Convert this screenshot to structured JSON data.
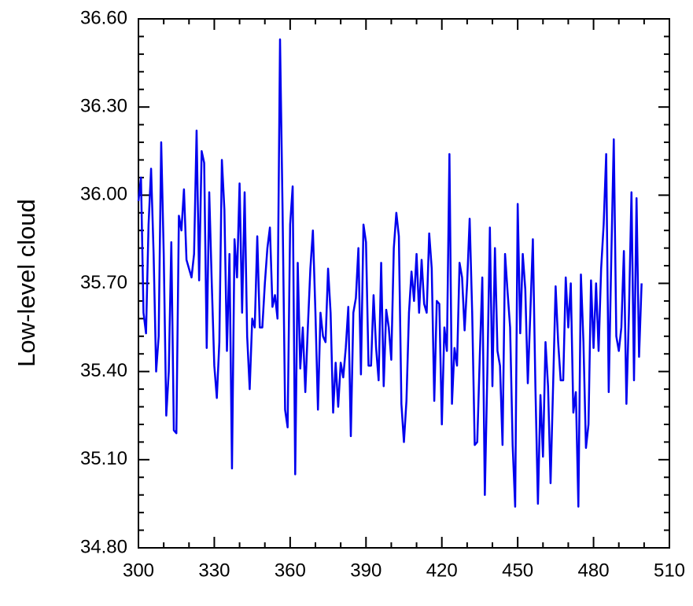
{
  "chart_data": {
    "type": "line",
    "ylabel": "Low-level cloud",
    "x": [
      300,
      301,
      302,
      303,
      304,
      305,
      306,
      307,
      308,
      309,
      310,
      311,
      312,
      313,
      314,
      315,
      316,
      317,
      318,
      319,
      320,
      321,
      322,
      323,
      324,
      325,
      326,
      327,
      328,
      329,
      330,
      331,
      332,
      333,
      334,
      335,
      336,
      337,
      338,
      339,
      340,
      341,
      342,
      343,
      344,
      345,
      346,
      347,
      348,
      349,
      350,
      351,
      352,
      353,
      354,
      355,
      356,
      357,
      358,
      359,
      360,
      361,
      362,
      363,
      364,
      365,
      366,
      367,
      368,
      369,
      370,
      371,
      372,
      373,
      374,
      375,
      376,
      377,
      378,
      379,
      380,
      381,
      382,
      383,
      384,
      385,
      386,
      387,
      388,
      389,
      390,
      391,
      392,
      393,
      394,
      395,
      396,
      397,
      398,
      399,
      400,
      401,
      402,
      403,
      404,
      405,
      406,
      407,
      408,
      409,
      410,
      411,
      412,
      413,
      414,
      415,
      416,
      417,
      418,
      419,
      420,
      421,
      422,
      423,
      424,
      425,
      426,
      427,
      428,
      429,
      430,
      431,
      432,
      433,
      434,
      435,
      436,
      437,
      438,
      439,
      440,
      441,
      442,
      443,
      444,
      445,
      446,
      447,
      448,
      449,
      450,
      451,
      452,
      453,
      454,
      455,
      456,
      457,
      458,
      459,
      460,
      461,
      462,
      463,
      464,
      465,
      466,
      467,
      468,
      469,
      470,
      471,
      472,
      473,
      474,
      475,
      476,
      477,
      478,
      479,
      480,
      481,
      482,
      483,
      484,
      485,
      486,
      487,
      488,
      489,
      490,
      491,
      492,
      493,
      494,
      495,
      496,
      497,
      498,
      499
    ],
    "series": [
      {
        "color": "#0000ee",
        "values": [
          35.98,
          36.06,
          35.6,
          35.53,
          35.9,
          36.09,
          35.8,
          35.4,
          35.52,
          36.18,
          35.8,
          35.25,
          35.4,
          35.84,
          35.2,
          35.19,
          35.93,
          35.88,
          36.02,
          35.78,
          35.75,
          35.72,
          35.8,
          36.22,
          35.71,
          36.15,
          36.11,
          35.48,
          36.01,
          35.7,
          35.42,
          35.31,
          35.5,
          36.12,
          35.95,
          35.47,
          35.8,
          35.07,
          35.85,
          35.72,
          36.04,
          35.6,
          36.01,
          35.52,
          35.34,
          35.58,
          35.55,
          35.86,
          35.55,
          35.55,
          35.7,
          35.82,
          35.89,
          35.62,
          35.66,
          35.58,
          36.53,
          35.95,
          35.27,
          35.21,
          35.9,
          36.03,
          35.05,
          35.77,
          35.41,
          35.55,
          35.33,
          35.55,
          35.75,
          35.88,
          35.6,
          35.27,
          35.6,
          35.52,
          35.5,
          35.75,
          35.6,
          35.26,
          35.43,
          35.28,
          35.43,
          35.38,
          35.48,
          35.62,
          35.18,
          35.6,
          35.65,
          35.82,
          35.39,
          35.9,
          35.84,
          35.42,
          35.42,
          35.66,
          35.48,
          35.37,
          35.77,
          35.35,
          35.61,
          35.55,
          35.44,
          35.82,
          35.94,
          35.86,
          35.29,
          35.16,
          35.3,
          35.6,
          35.74,
          35.64,
          35.8,
          35.6,
          35.78,
          35.63,
          35.6,
          35.87,
          35.75,
          35.3,
          35.64,
          35.63,
          35.22,
          35.55,
          35.47,
          36.14,
          35.29,
          35.48,
          35.42,
          35.77,
          35.72,
          35.54,
          35.7,
          35.92,
          35.6,
          35.15,
          35.16,
          35.45,
          35.72,
          34.98,
          35.4,
          35.89,
          35.35,
          35.82,
          35.47,
          35.42,
          35.15,
          35.8,
          35.67,
          35.55,
          35.15,
          34.94,
          35.97,
          35.53,
          35.8,
          35.68,
          35.36,
          35.6,
          35.85,
          35.35,
          34.95,
          35.32,
          35.11,
          35.5,
          35.35,
          35.02,
          35.35,
          35.69,
          35.5,
          35.37,
          35.37,
          35.72,
          35.55,
          35.7,
          35.26,
          35.33,
          34.94,
          35.73,
          35.5,
          35.14,
          35.22,
          35.71,
          35.48,
          35.7,
          35.47,
          35.75,
          35.9,
          36.14,
          35.33,
          35.78,
          36.19,
          35.52,
          35.47,
          35.55,
          35.81,
          35.29,
          35.6,
          36.01,
          35.37,
          35.99,
          35.45,
          35.7
        ]
      }
    ],
    "xlim": [
      300,
      510
    ],
    "xticks": [
      300,
      330,
      360,
      390,
      420,
      450,
      480,
      510
    ],
    "xminorticks": [
      310,
      320,
      340,
      350,
      370,
      380,
      400,
      410,
      430,
      440,
      460,
      470,
      490,
      500
    ],
    "ylim": [
      34.8,
      36.6
    ],
    "yticks": [
      {
        "value": 34.8,
        "label": "34.80"
      },
      {
        "value": 35.1,
        "label": "35.10"
      },
      {
        "value": 35.4,
        "label": "35.40"
      },
      {
        "value": 35.7,
        "label": "35.70"
      },
      {
        "value": 36.0,
        "label": "36.00"
      },
      {
        "value": 36.3,
        "label": "36.30"
      },
      {
        "value": 36.6,
        "label": "36.60"
      }
    ],
    "yminorticks": [
      34.86,
      34.92,
      34.98,
      35.04,
      35.16,
      35.22,
      35.28,
      35.34,
      35.46,
      35.52,
      35.58,
      35.64,
      35.76,
      35.82,
      35.88,
      35.94,
      36.06,
      36.12,
      36.18,
      36.24,
      36.36,
      36.42,
      36.48,
      36.54
    ]
  }
}
